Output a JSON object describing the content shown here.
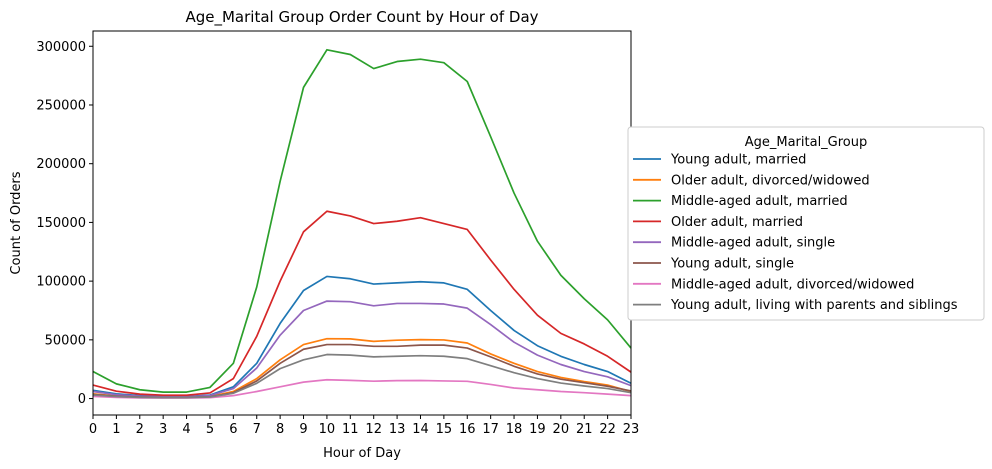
{
  "chart_data": {
    "type": "line",
    "title": "Age_Marital Group Order Count by Hour of Day",
    "xlabel": "Hour of Day",
    "ylabel": "Count of Orders",
    "xlim": [
      0,
      23
    ],
    "ylim": [
      -14000,
      313000
    ],
    "yticks": [
      0,
      50000,
      100000,
      150000,
      200000,
      250000,
      300000
    ],
    "x": [
      0,
      1,
      2,
      3,
      4,
      5,
      6,
      7,
      8,
      9,
      10,
      11,
      12,
      13,
      14,
      15,
      16,
      17,
      18,
      19,
      20,
      21,
      22,
      23
    ],
    "legend_title": "Age_Marital_Group",
    "legend_position": "center-right outside",
    "series": [
      {
        "name": "Young adult, married",
        "color": "#1f77b4",
        "values": [
          7000,
          4000,
          2500,
          1800,
          1800,
          3000,
          10000,
          30000,
          64000,
          92000,
          104000,
          102000,
          97500,
          98500,
          99500,
          98500,
          93000,
          75000,
          58000,
          45000,
          36000,
          29000,
          23000,
          13000
        ]
      },
      {
        "name": "Older adult, divorced/widowed",
        "color": "#ff7f0e",
        "values": [
          4000,
          2200,
          1300,
          1000,
          1000,
          1700,
          6000,
          17000,
          33000,
          46000,
          51000,
          50800,
          48700,
          49700,
          50200,
          49900,
          47300,
          38000,
          30000,
          23000,
          18000,
          14500,
          11500,
          6000
        ]
      },
      {
        "name": "Middle-aged adult, married",
        "color": "#2ca02c",
        "values": [
          23000,
          12500,
          7500,
          5500,
          5500,
          9500,
          30000,
          95000,
          185000,
          265000,
          297000,
          293000,
          281000,
          287000,
          289000,
          286000,
          270000,
          223000,
          175000,
          134000,
          105000,
          85000,
          67000,
          43000
        ]
      },
      {
        "name": "Older adult, married",
        "color": "#d62728",
        "values": [
          11500,
          6300,
          3800,
          2800,
          2800,
          4800,
          17000,
          53000,
          100000,
          142000,
          159500,
          155500,
          149000,
          151000,
          154000,
          149000,
          144000,
          118000,
          93000,
          71000,
          55500,
          46500,
          36000,
          22500
        ]
      },
      {
        "name": "Middle-aged adult, single",
        "color": "#9467bd",
        "values": [
          6000,
          3300,
          2000,
          1500,
          1500,
          2500,
          8500,
          26000,
          54000,
          75000,
          83000,
          82500,
          79000,
          81000,
          81000,
          80500,
          77000,
          63000,
          48000,
          37000,
          29000,
          23000,
          18500,
          11000
        ]
      },
      {
        "name": "Young adult, single",
        "color": "#8c564b",
        "values": [
          3500,
          2000,
          1200,
          900,
          900,
          1500,
          5000,
          15000,
          30000,
          42000,
          46000,
          46000,
          44500,
          44500,
          45500,
          45500,
          43000,
          35500,
          27500,
          21000,
          16500,
          13500,
          10500,
          6500
        ]
      },
      {
        "name": "Middle-aged adult, divorced/widowed",
        "color": "#e377c2",
        "values": [
          1800,
          1000,
          600,
          450,
          450,
          750,
          2500,
          6000,
          10000,
          14000,
          16000,
          15500,
          14800,
          15300,
          15400,
          15000,
          14700,
          12000,
          9000,
          7500,
          6000,
          5000,
          3800,
          2500
        ]
      },
      {
        "name": "Young adult, living with parents and siblings",
        "color": "#7f7f7f",
        "values": [
          3000,
          1700,
          1000,
          800,
          800,
          1300,
          4500,
          13000,
          25500,
          33000,
          37500,
          37000,
          35500,
          36000,
          36500,
          36000,
          34000,
          28000,
          22000,
          17000,
          13200,
          10700,
          8500,
          5000
        ]
      }
    ]
  }
}
